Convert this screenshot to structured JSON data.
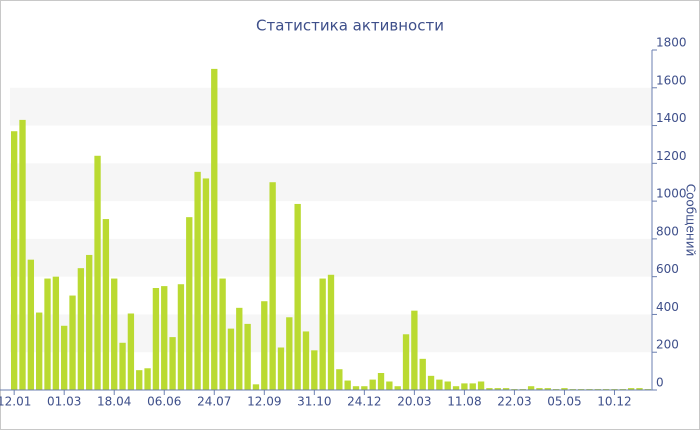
{
  "chart_data": {
    "type": "bar",
    "title": "Статистика активности",
    "y_label": "Сообщений",
    "categories": [
      "12.01",
      null,
      null,
      null,
      null,
      null,
      "01.03",
      null,
      null,
      null,
      null,
      null,
      "18.04",
      null,
      null,
      null,
      null,
      null,
      "06.06",
      null,
      null,
      null,
      null,
      null,
      "24.07",
      null,
      null,
      null,
      null,
      null,
      "12.09",
      null,
      null,
      null,
      null,
      null,
      "31.10",
      null,
      null,
      null,
      null,
      null,
      "24.12",
      null,
      null,
      null,
      null,
      null,
      "20.03",
      null,
      null,
      null,
      null,
      null,
      "11.08",
      null,
      null,
      null,
      null,
      null,
      "22.03",
      null,
      null,
      null,
      null,
      null,
      "05.05",
      null,
      null,
      null,
      null,
      null,
      "10.12",
      null,
      null,
      null,
      null
    ],
    "values": [
      1370,
      1430,
      690,
      410,
      590,
      600,
      340,
      500,
      645,
      715,
      1240,
      905,
      590,
      250,
      405,
      105,
      115,
      540,
      550,
      280,
      560,
      915,
      1155,
      1120,
      1700,
      590,
      325,
      435,
      350,
      30,
      470,
      1100,
      225,
      385,
      985,
      310,
      210,
      590,
      610,
      110,
      50,
      20,
      20,
      55,
      90,
      45,
      20,
      295,
      420,
      165,
      75,
      55,
      45,
      20,
      35,
      35,
      45,
      10,
      10,
      10,
      5,
      5,
      20,
      10,
      10,
      5,
      10,
      5,
      5,
      5,
      5,
      5,
      5,
      5,
      10,
      10,
      5
    ],
    "color": "#bada31",
    "ylim": [
      0,
      1800
    ],
    "yticks": [
      0,
      200,
      400,
      600,
      800,
      1000,
      1200,
      1400,
      1600,
      1800
    ],
    "grid_bands": true,
    "y_axis_side": "right"
  }
}
